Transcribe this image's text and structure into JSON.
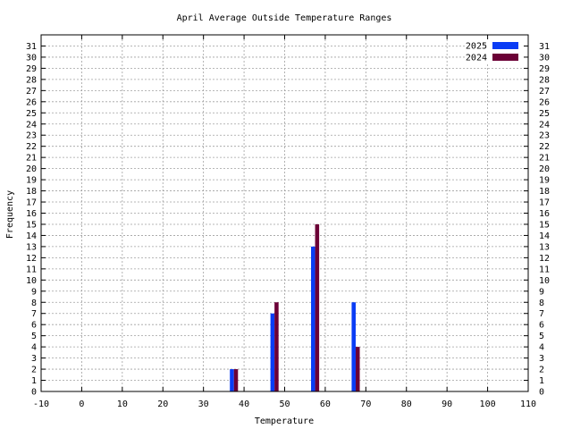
{
  "chart_data": {
    "type": "bar",
    "title": "April Average Outside Temperature Ranges",
    "xlabel": "Temperature",
    "ylabel": "Frequency",
    "xlim": [
      -10,
      110
    ],
    "ylim": [
      0,
      32
    ],
    "x_ticks": [
      -10,
      0,
      10,
      20,
      30,
      40,
      50,
      60,
      70,
      80,
      90,
      100,
      110
    ],
    "y_ticks": [
      0,
      1,
      2,
      3,
      4,
      5,
      6,
      7,
      8,
      9,
      10,
      11,
      12,
      13,
      14,
      15,
      16,
      17,
      18,
      19,
      20,
      21,
      22,
      23,
      24,
      25,
      26,
      27,
      28,
      29,
      30,
      31
    ],
    "grid": true,
    "legend_position": "top-right",
    "series": [
      {
        "name": "2025",
        "color": "#0a3cf5",
        "points": [
          {
            "x": 37,
            "y": 2
          },
          {
            "x": 47,
            "y": 7
          },
          {
            "x": 57,
            "y": 13
          },
          {
            "x": 67,
            "y": 8
          }
        ]
      },
      {
        "name": "2024",
        "color": "#6b0036",
        "points": [
          {
            "x": 38,
            "y": 2
          },
          {
            "x": 48,
            "y": 8
          },
          {
            "x": 58,
            "y": 15
          },
          {
            "x": 68,
            "y": 4
          }
        ]
      }
    ]
  }
}
